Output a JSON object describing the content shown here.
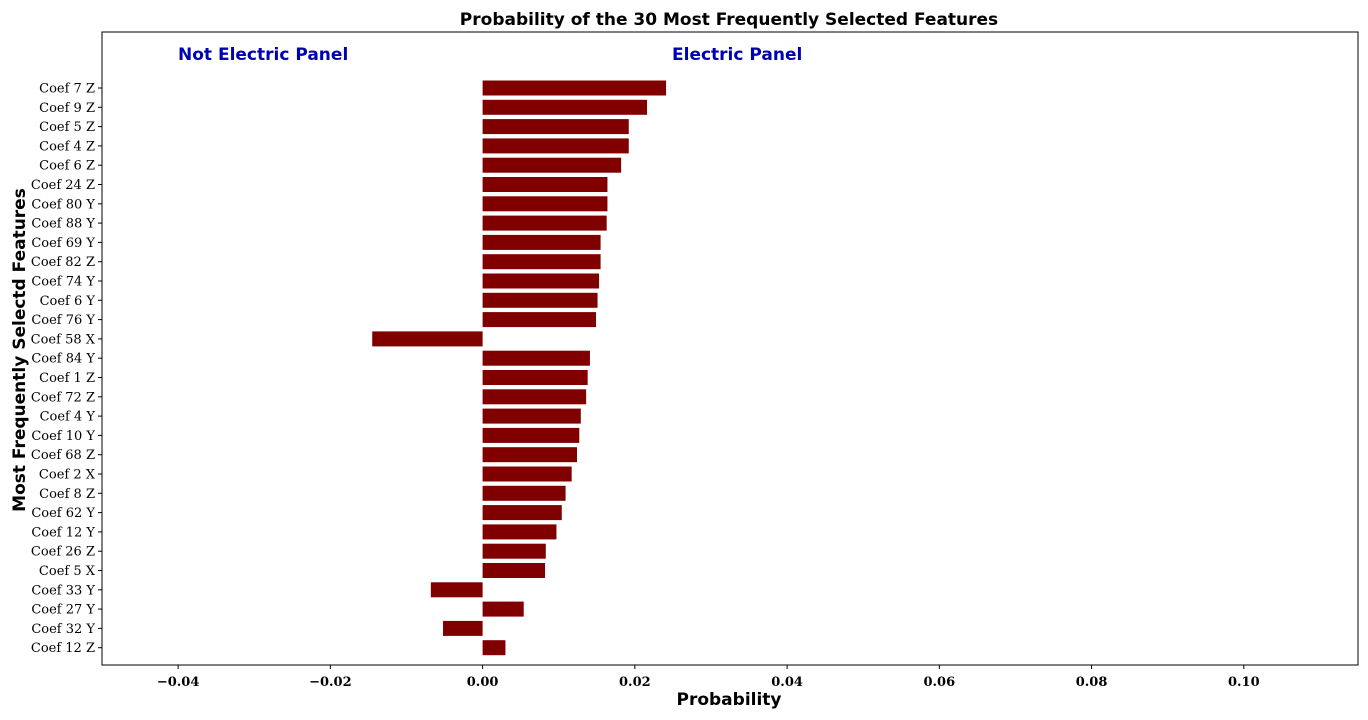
{
  "chart_data": {
    "type": "bar",
    "orientation": "horizontal",
    "title": "Probability of the 30 Most Frequently Selected Features",
    "xlabel": "Probability",
    "ylabel": "Most Frequently Selectd Features",
    "xlim": [
      -0.05,
      0.115
    ],
    "xticks": [
      -0.04,
      -0.02,
      0.0,
      0.02,
      0.04,
      0.06,
      0.08,
      0.1
    ],
    "xtick_labels": [
      "−0.04",
      "−0.02",
      "0.00",
      "0.02",
      "0.04",
      "0.06",
      "0.08",
      "0.10"
    ],
    "grid": false,
    "bar_color": "#800000",
    "annotations": [
      {
        "text": "Not Electric Panel",
        "color": "#0000b3",
        "x": -0.04
      },
      {
        "text": "Electric Panel",
        "color": "#0000b3",
        "x": 0.025
      }
    ],
    "categories": [
      "Coef 7 Z",
      "Coef 9 Z",
      "Coef 5 Z",
      "Coef 4 Z",
      "Coef 6 Z",
      "Coef 24 Z",
      "Coef 80 Y",
      "Coef 88 Y",
      "Coef 69 Y",
      "Coef 82 Z",
      "Coef 74 Y",
      "Coef 6 Y",
      "Coef 76 Y",
      "Coef 58 X",
      "Coef 84 Y",
      "Coef 1 Z",
      "Coef 72 Z",
      "Coef 4 Y",
      "Coef 10 Y",
      "Coef 68 Z",
      "Coef 2 X",
      "Coef 8 Z",
      "Coef 62 Y",
      "Coef 12 Y",
      "Coef 26 Z",
      "Coef 5 X",
      "Coef 33 Y",
      "Coef 27 Y",
      "Coef 32 Y",
      "Coef 12 Z"
    ],
    "values": [
      0.0241,
      0.0216,
      0.0192,
      0.0192,
      0.0182,
      0.0164,
      0.0164,
      0.0163,
      0.0155,
      0.0155,
      0.0153,
      0.0151,
      0.0149,
      -0.0145,
      0.0141,
      0.0138,
      0.0136,
      0.0129,
      0.0127,
      0.0124,
      0.0117,
      0.0109,
      0.0104,
      0.0097,
      0.0083,
      0.0082,
      -0.0068,
      0.0054,
      -0.0052,
      0.003
    ]
  }
}
